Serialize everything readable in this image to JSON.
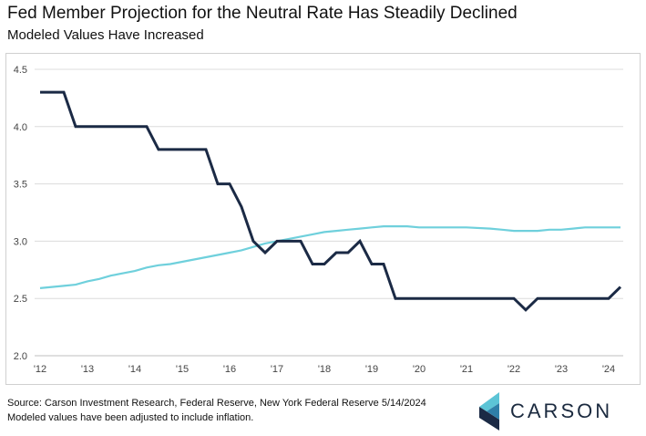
{
  "header": {
    "title": "Fed Member Projection for the Neutral Rate Has Steadily Declined",
    "subtitle": "Modeled Values Have Increased"
  },
  "footer": {
    "source": "Source: Carson Investment Research, Federal Reserve, New York Federal Reserve 5/14/2024",
    "note": "Modeled values have been adjusted to include inflation."
  },
  "logo": {
    "text": "CARSON",
    "icon": "carson-chevron-icon"
  },
  "colors": {
    "fed_projection": "#1b2a45",
    "modeled": "#6fd0dc",
    "grid": "#dcdcdc",
    "axis": "#bfbfbf"
  },
  "chart_data": {
    "type": "line",
    "title": "Fed Member Projection for the Neutral Rate Has Steadily Declined",
    "subtitle": "Modeled Values Have Increased",
    "xlabel": "",
    "ylabel": "",
    "xlim": [
      2012.0,
      2024.3
    ],
    "ylim": [
      2.0,
      4.5
    ],
    "y_ticks": [
      "2.0",
      "2.5",
      "3.0",
      "3.5",
      "4.0",
      "4.5"
    ],
    "x_ticks": [
      {
        "label": "'12",
        "x": 2012
      },
      {
        "label": "'13",
        "x": 2013
      },
      {
        "label": "'14",
        "x": 2014
      },
      {
        "label": "'15",
        "x": 2015
      },
      {
        "label": "'16",
        "x": 2016
      },
      {
        "label": "'17",
        "x": 2017
      },
      {
        "label": "'18",
        "x": 2018
      },
      {
        "label": "'19",
        "x": 2019
      },
      {
        "label": "'20",
        "x": 2020
      },
      {
        "label": "'21",
        "x": 2021
      },
      {
        "label": "'22",
        "x": 2022
      },
      {
        "label": "'23",
        "x": 2023
      },
      {
        "label": "'24",
        "x": 2024
      }
    ],
    "grid": true,
    "legend": "none",
    "series": [
      {
        "color": "#1b2a45",
        "points": [
          [
            2012.0,
            4.3
          ],
          [
            2012.5,
            4.3
          ],
          [
            2012.75,
            4.0
          ],
          [
            2013.0,
            4.0
          ],
          [
            2013.25,
            4.0
          ],
          [
            2013.5,
            4.0
          ],
          [
            2013.75,
            4.0
          ],
          [
            2014.0,
            4.0
          ],
          [
            2014.25,
            4.0
          ],
          [
            2014.5,
            3.8
          ],
          [
            2014.75,
            3.8
          ],
          [
            2015.0,
            3.8
          ],
          [
            2015.25,
            3.8
          ],
          [
            2015.5,
            3.8
          ],
          [
            2015.75,
            3.5
          ],
          [
            2016.0,
            3.5
          ],
          [
            2016.25,
            3.3
          ],
          [
            2016.5,
            3.0
          ],
          [
            2016.75,
            2.9
          ],
          [
            2017.0,
            3.0
          ],
          [
            2017.25,
            3.0
          ],
          [
            2017.5,
            3.0
          ],
          [
            2017.75,
            2.8
          ],
          [
            2018.0,
            2.8
          ],
          [
            2018.25,
            2.9
          ],
          [
            2018.5,
            2.9
          ],
          [
            2018.75,
            3.0
          ],
          [
            2019.0,
            2.8
          ],
          [
            2019.25,
            2.8
          ],
          [
            2019.5,
            2.5
          ],
          [
            2019.75,
            2.5
          ],
          [
            2020.0,
            2.5
          ],
          [
            2020.5,
            2.5
          ],
          [
            2021.0,
            2.5
          ],
          [
            2021.5,
            2.5
          ],
          [
            2021.75,
            2.5
          ],
          [
            2022.0,
            2.5
          ],
          [
            2022.25,
            2.4
          ],
          [
            2022.5,
            2.5
          ],
          [
            2022.75,
            2.5
          ],
          [
            2023.0,
            2.5
          ],
          [
            2023.5,
            2.5
          ],
          [
            2023.75,
            2.5
          ],
          [
            2024.0,
            2.5
          ],
          [
            2024.25,
            2.6
          ]
        ]
      },
      {
        "color": "#6fd0dc",
        "points": [
          [
            2012.0,
            2.59
          ],
          [
            2012.25,
            2.6
          ],
          [
            2012.5,
            2.61
          ],
          [
            2012.75,
            2.62
          ],
          [
            2013.0,
            2.65
          ],
          [
            2013.25,
            2.67
          ],
          [
            2013.5,
            2.7
          ],
          [
            2013.75,
            2.72
          ],
          [
            2014.0,
            2.74
          ],
          [
            2014.25,
            2.77
          ],
          [
            2014.5,
            2.79
          ],
          [
            2014.75,
            2.8
          ],
          [
            2015.0,
            2.82
          ],
          [
            2015.25,
            2.84
          ],
          [
            2015.5,
            2.86
          ],
          [
            2015.75,
            2.88
          ],
          [
            2016.0,
            2.9
          ],
          [
            2016.25,
            2.92
          ],
          [
            2016.5,
            2.95
          ],
          [
            2016.75,
            2.98
          ],
          [
            2017.0,
            3.0
          ],
          [
            2017.25,
            3.02
          ],
          [
            2017.5,
            3.04
          ],
          [
            2017.75,
            3.06
          ],
          [
            2018.0,
            3.08
          ],
          [
            2018.25,
            3.09
          ],
          [
            2018.5,
            3.1
          ],
          [
            2018.75,
            3.11
          ],
          [
            2019.0,
            3.12
          ],
          [
            2019.25,
            3.13
          ],
          [
            2019.5,
            3.13
          ],
          [
            2019.75,
            3.13
          ],
          [
            2020.0,
            3.12
          ],
          [
            2020.5,
            3.12
          ],
          [
            2021.0,
            3.12
          ],
          [
            2021.5,
            3.11
          ],
          [
            2021.75,
            3.1
          ],
          [
            2022.0,
            3.09
          ],
          [
            2022.25,
            3.09
          ],
          [
            2022.5,
            3.09
          ],
          [
            2022.75,
            3.1
          ],
          [
            2023.0,
            3.1
          ],
          [
            2023.25,
            3.11
          ],
          [
            2023.5,
            3.12
          ],
          [
            2023.75,
            3.12
          ],
          [
            2024.0,
            3.12
          ],
          [
            2024.25,
            3.12
          ]
        ]
      }
    ]
  }
}
